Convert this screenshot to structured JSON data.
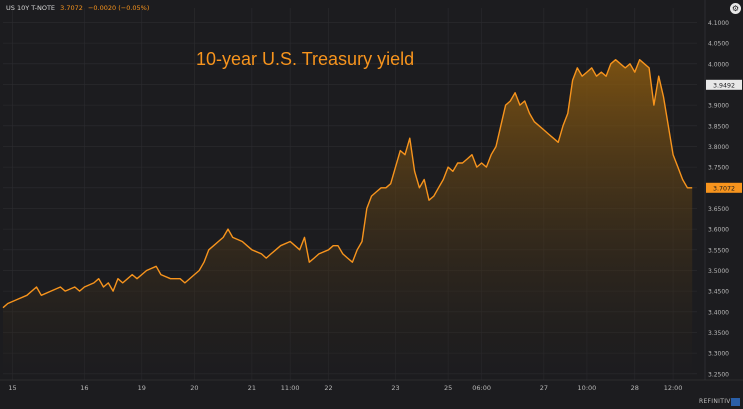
{
  "header": {
    "symbol": "US 10Y T-NOTE",
    "price": "3.7072",
    "change": "−0.0020 (−0.05%)"
  },
  "icons": {
    "settings": "gear-icon"
  },
  "brand": {
    "name": "REFINITIV",
    "logo": "refinitiv-logo-icon"
  },
  "colors": {
    "background": "#1c1c1f",
    "line": "#f7941d",
    "fill_top": "#8a5a10",
    "grid": "#2c2c30",
    "axis_text": "#b8b8b8",
    "title": "#f7941d",
    "badge_last": "#f7941d",
    "badge_ref": "#e8e8e8"
  },
  "chart_data": {
    "type": "area",
    "title": "10-year U.S. Treasury yield",
    "xlabel": "",
    "ylabel": "",
    "ylim": [
      3.235,
      4.135
    ],
    "y_axis_position": "right",
    "grid": true,
    "y_ticks": [
      3.25,
      3.3,
      3.35,
      3.4,
      3.45,
      3.5,
      3.55,
      3.6,
      3.65,
      3.7,
      3.75,
      3.8,
      3.85,
      3.9,
      3.95,
      4.0,
      4.05,
      4.1
    ],
    "y_tick_labels": [
      "3.2500",
      "3.3000",
      "3.3500",
      "3.4000",
      "3.4500",
      "3.5000",
      "3.5500",
      "3.6000",
      "3.6500",
      "3.7000",
      "3.7500",
      "3.8000",
      "3.8500",
      "3.9000",
      "3.9500",
      "4.0000",
      "4.0500",
      "4.1000"
    ],
    "x_tick_labels": [
      "15",
      "16",
      "19",
      "20",
      "21",
      "11:00",
      "22",
      "23",
      "25",
      "06:00",
      "27",
      "10:00",
      "28",
      "12:00"
    ],
    "x_tick_positions": [
      2,
      17,
      29,
      40,
      52,
      60,
      68,
      82,
      93,
      100,
      113,
      122,
      132,
      140
    ],
    "x_domain": [
      0,
      145
    ],
    "last_value_label": "3.7072",
    "reference_value_label": "3.9492",
    "reference_value": 3.9492,
    "series": [
      {
        "x": [
          0,
          1,
          3,
          5,
          7,
          8,
          10,
          12,
          13,
          15,
          16,
          17,
          19,
          20,
          21,
          22,
          23,
          24,
          25,
          27,
          28,
          30,
          32,
          33,
          35,
          37,
          38,
          40,
          41,
          42,
          43,
          44,
          45,
          46,
          47,
          48,
          50,
          51,
          52,
          54,
          55,
          56,
          57,
          58,
          60,
          61,
          62,
          63,
          64,
          65,
          66,
          68,
          69,
          70,
          71,
          72,
          73,
          74,
          75,
          76,
          77,
          78,
          79,
          80,
          81,
          82,
          83,
          84,
          85,
          86,
          87,
          88,
          89,
          90,
          91,
          92,
          93,
          94,
          95,
          96,
          97,
          98,
          99,
          100,
          101,
          102,
          103,
          104,
          105,
          106,
          107,
          108,
          109,
          110,
          111,
          112,
          113,
          114,
          115,
          116,
          117,
          118,
          119,
          120,
          121,
          122,
          123,
          124,
          125,
          126,
          127,
          128,
          129,
          130,
          131,
          132,
          133,
          134,
          135,
          136,
          137,
          138,
          139,
          140,
          141,
          142,
          143,
          144
        ],
        "values": [
          3.41,
          3.42,
          3.43,
          3.44,
          3.46,
          3.44,
          3.45,
          3.46,
          3.45,
          3.46,
          3.45,
          3.46,
          3.47,
          3.48,
          3.46,
          3.47,
          3.45,
          3.48,
          3.47,
          3.49,
          3.48,
          3.5,
          3.51,
          3.49,
          3.48,
          3.48,
          3.47,
          3.49,
          3.5,
          3.52,
          3.55,
          3.56,
          3.57,
          3.58,
          3.6,
          3.58,
          3.57,
          3.56,
          3.55,
          3.54,
          3.53,
          3.54,
          3.55,
          3.56,
          3.57,
          3.56,
          3.55,
          3.58,
          3.52,
          3.53,
          3.54,
          3.55,
          3.56,
          3.56,
          3.54,
          3.53,
          3.52,
          3.55,
          3.57,
          3.65,
          3.68,
          3.69,
          3.7,
          3.7,
          3.71,
          3.75,
          3.79,
          3.78,
          3.82,
          3.74,
          3.7,
          3.72,
          3.67,
          3.68,
          3.7,
          3.72,
          3.75,
          3.74,
          3.76,
          3.76,
          3.77,
          3.78,
          3.75,
          3.76,
          3.75,
          3.78,
          3.8,
          3.85,
          3.9,
          3.91,
          3.93,
          3.9,
          3.91,
          3.88,
          3.86,
          3.85,
          3.84,
          3.83,
          3.82,
          3.81,
          3.85,
          3.88,
          3.96,
          3.99,
          3.97,
          3.98,
          3.99,
          3.97,
          3.98,
          3.97,
          4.0,
          4.01,
          4.0,
          3.99,
          4.0,
          3.98,
          4.01,
          4.0,
          3.99,
          3.9,
          3.97,
          3.92,
          3.85,
          3.78,
          3.75,
          3.72,
          3.7,
          3.7
        ]
      }
    ]
  }
}
